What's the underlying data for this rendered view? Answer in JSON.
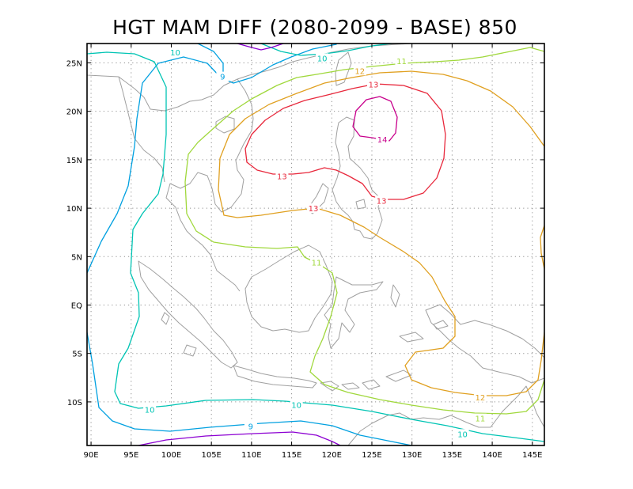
{
  "title": "HGT MAM DIFF (2080-2099 - BASE) 850",
  "map": {
    "lon_range": [
      89.5,
      146.5
    ],
    "lat_range": [
      -14.5,
      27
    ],
    "grid": "dotted",
    "lon_ticks": [
      {
        "value": 90,
        "label": "90E"
      },
      {
        "value": 95,
        "label": "95E"
      },
      {
        "value": 100,
        "label": "100E"
      },
      {
        "value": 105,
        "label": "105E"
      },
      {
        "value": 110,
        "label": "110E"
      },
      {
        "value": 115,
        "label": "115E"
      },
      {
        "value": 120,
        "label": "120E"
      },
      {
        "value": 125,
        "label": "125E"
      },
      {
        "value": 130,
        "label": "130E"
      },
      {
        "value": 135,
        "label": "135E"
      },
      {
        "value": 140,
        "label": "140E"
      },
      {
        "value": 145,
        "label": "145E"
      }
    ],
    "lat_ticks": [
      {
        "value": 25,
        "label": "25N"
      },
      {
        "value": 20,
        "label": "20N"
      },
      {
        "value": 15,
        "label": "15N"
      },
      {
        "value": 10,
        "label": "10N"
      },
      {
        "value": 5,
        "label": "5N"
      },
      {
        "value": 0,
        "label": "EQ"
      },
      {
        "value": -5,
        "label": "5S"
      },
      {
        "value": -10,
        "label": "10S"
      }
    ],
    "coastline_color": "#a0a0a0"
  },
  "contours": [
    {
      "level": "9",
      "color": "#00a0e0"
    },
    {
      "level": "10",
      "color": "#00c4b4"
    },
    {
      "level": "11",
      "color": "#a0d83c"
    },
    {
      "level": "12",
      "color": "#e0a020"
    },
    {
      "level": "13",
      "color": "#e8283c"
    },
    {
      "level": "14",
      "color": "#c8008c"
    },
    {
      "level": "",
      "color": "#8c00d2"
    }
  ],
  "contour_labels": [
    {
      "text": "10",
      "color": "#00c4b4",
      "lon": 100.5,
      "lat": 26.1
    },
    {
      "text": "9",
      "color": "#00a0e0",
      "lon": 106.4,
      "lat": 23.6
    },
    {
      "text": "10",
      "color": "#00c4b4",
      "lon": 118.8,
      "lat": 25.5
    },
    {
      "text": "11",
      "color": "#a0d83c",
      "lon": 128.7,
      "lat": 25.2
    },
    {
      "text": "12",
      "color": "#e0a020",
      "lon": 123.5,
      "lat": 24.2
    },
    {
      "text": "13",
      "color": "#e8283c",
      "lon": 125.2,
      "lat": 22.8
    },
    {
      "text": "14",
      "color": "#c8008c",
      "lon": 126.3,
      "lat": 17.1
    },
    {
      "text": "13",
      "color": "#e8283c",
      "lon": 113.8,
      "lat": 13.3
    },
    {
      "text": "13",
      "color": "#e8283c",
      "lon": 126.2,
      "lat": 10.8
    },
    {
      "text": "13",
      "color": "#e8283c",
      "lon": 117.7,
      "lat": 10.0
    },
    {
      "text": "11",
      "color": "#a0d83c",
      "lon": 118.1,
      "lat": 4.4
    },
    {
      "text": "12",
      "color": "#e0a020",
      "lon": 138.5,
      "lat": -9.5
    },
    {
      "text": "10",
      "color": "#00c4b4",
      "lon": 97.3,
      "lat": -10.8
    },
    {
      "text": "10",
      "color": "#00c4b4",
      "lon": 115.6,
      "lat": -10.3
    },
    {
      "text": "11",
      "color": "#a0d83c",
      "lon": 138.5,
      "lat": -11.7
    },
    {
      "text": "9",
      "color": "#00a0e0",
      "lon": 109.9,
      "lat": -12.5
    },
    {
      "text": "10",
      "color": "#00c4b4",
      "lon": 136.3,
      "lat": -13.3
    }
  ]
}
